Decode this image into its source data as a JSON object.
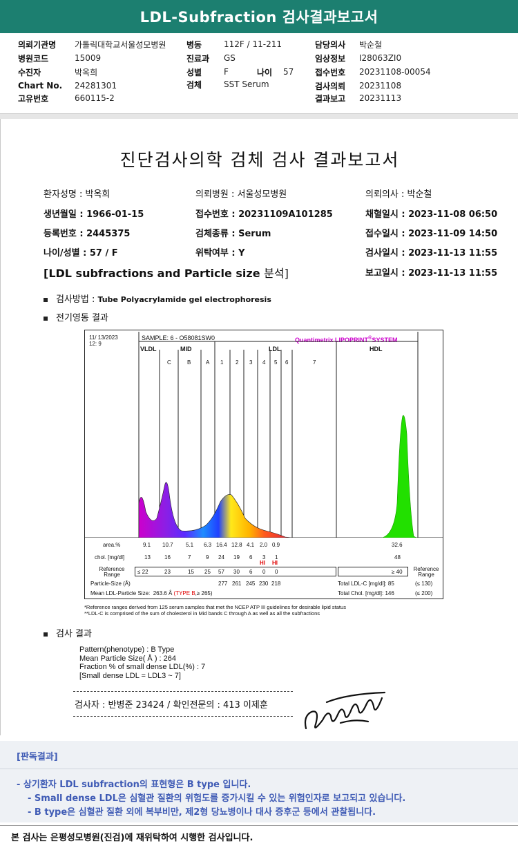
{
  "header": {
    "title": "LDL-Subfraction 검사결과보고서"
  },
  "info": {
    "col1": [
      {
        "label": "의뢰기관명",
        "value": "가톨릭대학교서울성모병원"
      },
      {
        "label": "병원코드",
        "value": "15009"
      },
      {
        "label": "수진자",
        "value": "박옥희"
      },
      {
        "label": "Chart No.",
        "value": "24281301"
      },
      {
        "label": "고유번호",
        "value": "660115-2"
      }
    ],
    "col2": [
      {
        "label": "병동",
        "value": "112F / 11-211"
      },
      {
        "label": "진료과",
        "value": "GS"
      },
      {
        "label": "성별",
        "value": "F"
      },
      {
        "label": "검체",
        "value": "SST Serum"
      }
    ],
    "age": {
      "label": "나이",
      "value": "57"
    },
    "col3": [
      {
        "label": "담당의사",
        "value": "박순철"
      },
      {
        "label": "임상정보",
        "value": "I28063ZI0"
      },
      {
        "label": "접수번호",
        "value": "20231108-00054"
      },
      {
        "label": "검사의뢰",
        "value": "20231108"
      },
      {
        "label": "결과보고",
        "value": "20231113"
      }
    ]
  },
  "report": {
    "title": "진단검사의학 검체 검사 결과보고서",
    "rows": [
      [
        "환자성명 : 박옥희",
        "의뢰병원 : 서울성모병원",
        "의뢰의사 : 박순철"
      ],
      [
        "생년월일 : 1966-01-15",
        "접수번호 : 20231109A101285",
        "채혈일시 : 2023-11-08 06:50"
      ],
      [
        "등록번호 : 2445375",
        "검체종류 : Serum",
        "접수일시 : 2023-11-09 14:50"
      ],
      [
        "나이/성별 : 57 / F",
        "위탁여부 : Y",
        "검사일시 : 2023-11-13 11:55"
      ]
    ],
    "report_time": "보고일시 : 2023-11-13 11:55",
    "subtitle_en": "[LDL subfractions and Particle size",
    "subtitle_ko": "분석]",
    "method_label": "검사방법 : ",
    "method_value": "Tube Polyacrylamide gel electrophoresis",
    "electro_label": "전기영동 결과",
    "result_label": "검사 결과"
  },
  "graph": {
    "date": "11/ 13/2023",
    "time": "12:  9",
    "sample": "SAMPLE:    6 - O58081SW0",
    "brand": "Quantimetrix LIPOPRINT",
    "brand_sup": "®",
    "brand_tail": "SYSTEM",
    "group_vldl": "VLDL",
    "group_mid": "MID",
    "group_ldl": "LDL",
    "group_hdl": "HDL",
    "bands": [
      "C",
      "B",
      "A",
      "1",
      "2",
      "3",
      "4",
      "5",
      "6",
      "7"
    ],
    "row_area_label": "area.%",
    "area_values": [
      "9.1",
      "10.7",
      "5.1",
      "6.3",
      "16.4",
      "12.8",
      "4.1",
      "2.0",
      "0.9"
    ],
    "hdl_area": "32.6",
    "row_chol_label": "chol. [mg/dl]",
    "chol_values": [
      "13",
      "16",
      "7",
      "9",
      "24",
      "19",
      "6",
      "3",
      "1"
    ],
    "hdl_chol": "48",
    "hi_flags": [
      "HI",
      "HI"
    ],
    "ref_label": "Reference Range",
    "ref_values": [
      "≤ 22",
      "23",
      "15",
      "25",
      "57",
      "30",
      "6",
      "0",
      "0"
    ],
    "hdl_ref": "≥ 40",
    "particle_label": "Particle-Size (Å)",
    "particle_values": [
      "277",
      "261",
      "245",
      "230",
      "218"
    ],
    "mean_label": "Mean LDL-Particle Size:",
    "mean_value": "263.6 Å",
    "mean_type": "(TYPE B",
    "mean_tail": ",≥ 265)",
    "total_ldl": "Total LDL-C [mg/dl]:  85",
    "total_ldl_ref": "(≤ 130)",
    "total_chol": "Total Chol. [mg/dl]:  146",
    "total_chol_ref": "(≤ 200)",
    "footnote1": "*Reference ranges derived from 125 serum samples that met the NCEP ATP III guidelines for desirable lipid status",
    "footnote2": "**LDL-C is comprised of the sum of cholesterol in Mid bands C through A as well as all the subfractions"
  },
  "results": {
    "pattern": "Pattern(phenotype) : B Type",
    "mean_size": "Mean Particle Size( Å ) : 264",
    "fraction": "Fraction % of small dense LDL(%) : 7",
    "small_dense": "[Small dense LDL = LDL3 ~ 7]"
  },
  "signature": {
    "text": "검사자 : 반병준  23424  /  확인전문의 : 413  이제훈"
  },
  "judgment": {
    "heading": "[판독결과]",
    "lines": [
      "- 상기환자 LDL subfraction의 표현형은 B type 입니다.",
      "-  Small dense LDL은 심혈관 질환의 위험도를 증가시킬 수 있는 위험인자로 보고되고 있습니다.",
      "-  B type은 심혈관 질환 외에 복부비만, 제2형 당뇨병이나 대사 증후군 등에서 관찰됩니다."
    ]
  },
  "footer": {
    "text": "본 검사는 은평성모병원(진검)에 재위탁하여 시행한 검사입니다."
  },
  "colors": {
    "header": "#1c7f70",
    "judge_text": "#3f5bb5",
    "brand": "#cc00cc",
    "hdl_peak": "#22e000"
  }
}
